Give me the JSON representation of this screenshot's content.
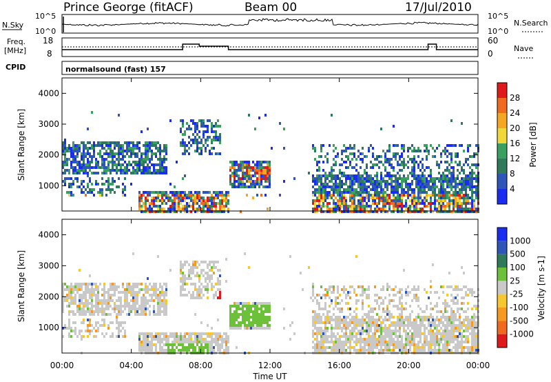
{
  "header": {
    "station": "Prince George (fitACF)",
    "beam": "Beam 00",
    "date": "17/Jul/2010"
  },
  "top_panels": {
    "nsky_label": "N.Sky",
    "nsearch_label": "N.Search",
    "freq_label_1": "Freq.",
    "freq_label_2": "[MHz]",
    "nave_label": "Nave",
    "cpid_label": "CPID",
    "cpid_value": "normalsound (fast) 157",
    "left_ticks_top": [
      "10^5",
      "10^0"
    ],
    "right_ticks_top": [
      "10^5",
      "10^0"
    ],
    "freq_ticks": [
      "18",
      "8"
    ],
    "nave_ticks": [
      "60",
      "0"
    ]
  },
  "chart_data": [
    {
      "type": "heatmap",
      "name": "power",
      "ylabel": "Slant Range [km]",
      "ylim": [
        180,
        4500
      ],
      "yticks": [
        "1000",
        "2000",
        "3000",
        "4000"
      ],
      "colorbar_label": "Power [dB]",
      "colorbar_ticks": [
        "4",
        "8",
        "12",
        "16",
        "20",
        "24",
        "28"
      ],
      "colors": [
        "#1a2cf0",
        "#2e55b8",
        "#2f7a5a",
        "#3aa060",
        "#f0d83a",
        "#f5a623",
        "#f06b1e",
        "#e01a1a"
      ]
    },
    {
      "type": "heatmap",
      "name": "velocity",
      "ylabel": "Slant Range [km]",
      "ylim": [
        180,
        4500
      ],
      "yticks": [
        "1000",
        "2000",
        "3000",
        "4000"
      ],
      "colorbar_label": "Velocity [m s-1]",
      "colorbar_ticks": [
        "1000",
        "500",
        "100",
        "25",
        "-25",
        "-100",
        "-500",
        "-1000"
      ],
      "colors": [
        "#1a2cf0",
        "#2e55b8",
        "#2f7a5a",
        "#6cc03a",
        "#c9c9c9",
        "#f5c832",
        "#f59a1e",
        "#f06b1e",
        "#e01a1a"
      ]
    }
  ],
  "x_axis": {
    "ticks": [
      "00:00",
      "04:00",
      "08:00",
      "12:00",
      "16:00",
      "20:00",
      "00:00"
    ],
    "label": "Time UT"
  }
}
